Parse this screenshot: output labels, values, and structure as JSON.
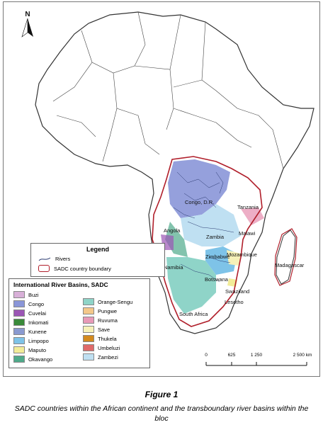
{
  "north_label": "N",
  "countries": {
    "congo": "Congo, D.R.",
    "tanzania": "Tanzania",
    "angola": "Angola",
    "zambia": "Zambia",
    "malawi": "Malawi",
    "namibia": "Namibia",
    "zimbabwe": "Zimbabwe",
    "mozambique": "Mozambique",
    "madagascar": "Madagascar",
    "botswana": "Botswana",
    "swaziland": "Swaziland",
    "lesotho": "Lesotho",
    "south_africa": "South Africa"
  },
  "legend": {
    "title": "Legend",
    "rivers": "Rivers",
    "boundary": "SADC country boundary"
  },
  "basins": {
    "title": "International River Basins, SADC",
    "items": [
      {
        "name": "Buzi",
        "color": "#d8b0d8"
      },
      {
        "name": "Congo",
        "color": "#8a96d8"
      },
      {
        "name": "Cuvelai",
        "color": "#9b55b5"
      },
      {
        "name": "Inkomati",
        "color": "#3a8a3a"
      },
      {
        "name": "Kunene",
        "color": "#8a9ad0"
      },
      {
        "name": "Limpopo",
        "color": "#7ec3e8"
      },
      {
        "name": "Maputo",
        "color": "#f2ec98"
      },
      {
        "name": "Okavango",
        "color": "#4faa8a"
      },
      {
        "name": "Orange-Sengu",
        "color": "#8fd4c8"
      },
      {
        "name": "Pungwe",
        "color": "#f4c88a"
      },
      {
        "name": "Ruvuma",
        "color": "#e89ab8"
      },
      {
        "name": "Save",
        "color": "#f6f1b8"
      },
      {
        "name": "Thukela",
        "color": "#d48a1e"
      },
      {
        "name": "Umbeluzi",
        "color": "#e06a6a"
      },
      {
        "name": "Zambezi",
        "color": "#bfe0f2"
      }
    ]
  },
  "scale": {
    "ticks": [
      "0",
      "625",
      "1 250",
      "2 500 km"
    ],
    "tick_values": [
      0,
      625,
      1250,
      2500
    ]
  },
  "caption": {
    "title": "Figure 1",
    "text": "SADC countries within the African continent and the transboundary river basins within the bloc"
  }
}
